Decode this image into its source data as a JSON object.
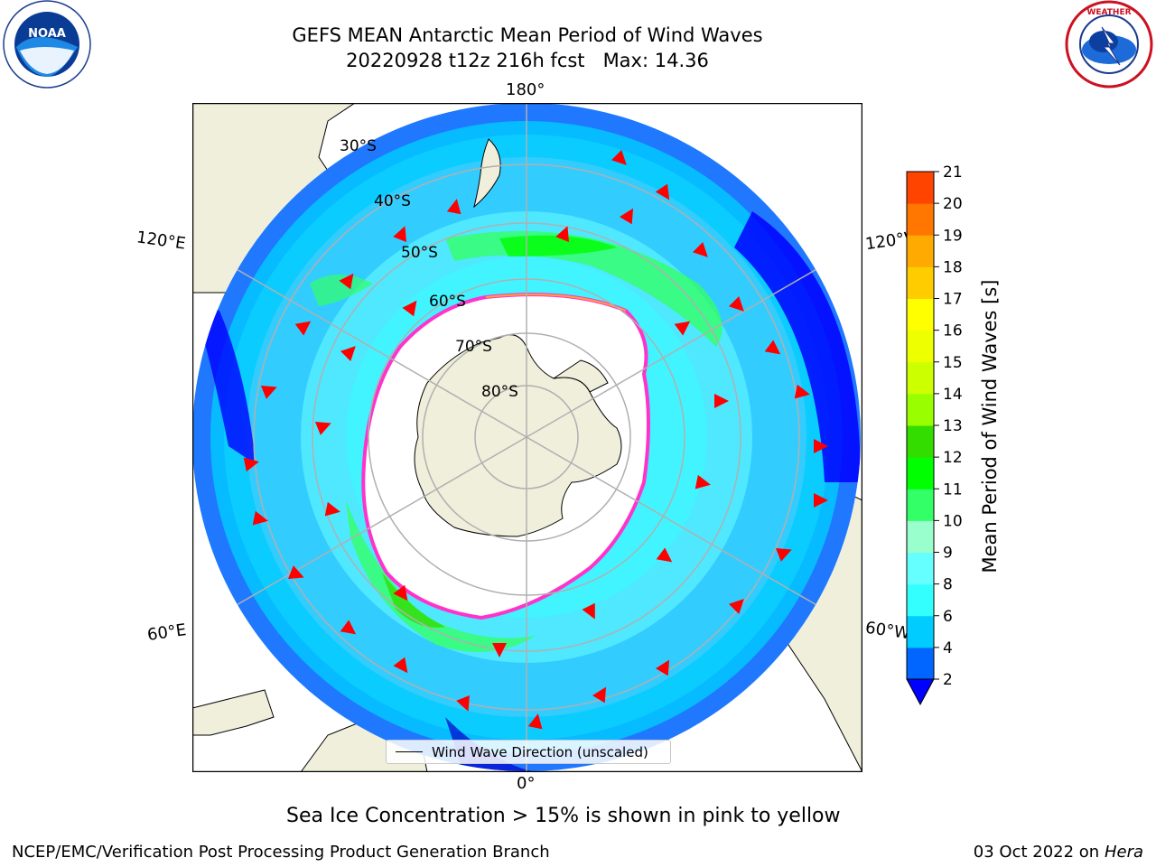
{
  "header": {
    "title_line1": "GEFS MEAN Antarctic Mean Period of Wind Waves",
    "title_line2": "20220928 t12z 216h fcst   Max: 14.36"
  },
  "logos": {
    "left": "NOAA",
    "right": "NATIONAL WEATHER SERVICE"
  },
  "map": {
    "projection": "south-polar-stereographic",
    "lon_labels": {
      "top": "180°",
      "bottom": "0°",
      "left_upper": "120°E",
      "left_lower": "60°E",
      "right_upper": "120°W",
      "right_lower": "60°W"
    },
    "lat_labels": [
      "30°S",
      "40°S",
      "50°S",
      "60°S",
      "70°S",
      "80°S"
    ],
    "legend": "Wind Wave Direction (unscaled)",
    "colors": {
      "land": "#efefdc",
      "ice_edge": "#ff33cc",
      "arrow": "#ff0000",
      "grid": "#b0b0b0"
    }
  },
  "colorbar": {
    "label": "Mean Period of Wind Waves [s]",
    "ticks": [
      "2",
      "4",
      "6",
      "8",
      "9",
      "10",
      "11",
      "12",
      "13",
      "14",
      "15",
      "16",
      "17",
      "18",
      "19",
      "20",
      "21"
    ],
    "colors": [
      "#0066ff",
      "#00ccff",
      "#33ffff",
      "#66ffff",
      "#99ffcc",
      "#33ff66",
      "#00ff00",
      "#33dd00",
      "#99ff00",
      "#ccff00",
      "#eeff00",
      "#ffff00",
      "#ffcc00",
      "#ffaa00",
      "#ff7700",
      "#ff4400"
    ],
    "under_color": "#0000ff",
    "top_color": "#ff0000"
  },
  "footer": {
    "subtitle": "Sea Ice Concentration > 15% is shown in pink to yellow",
    "left": "NCEP/EMC/Verification Post Processing Product Generation Branch",
    "right_prefix": "03 Oct 2022 on ",
    "right_host": "Hera"
  }
}
